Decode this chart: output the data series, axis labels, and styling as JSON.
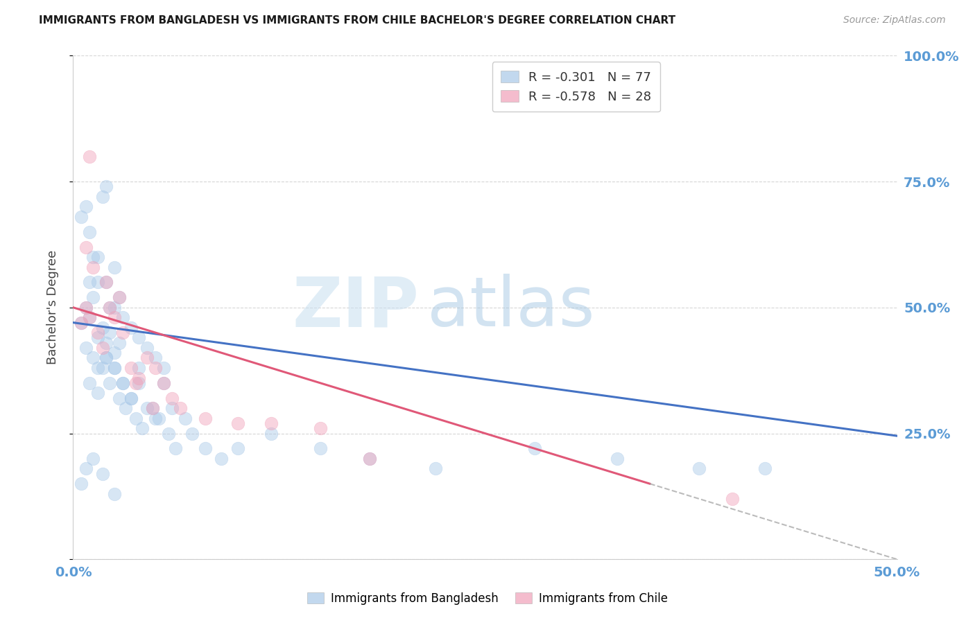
{
  "title": "IMMIGRANTS FROM BANGLADESH VS IMMIGRANTS FROM CHILE BACHELOR'S DEGREE CORRELATION CHART",
  "source": "Source: ZipAtlas.com",
  "ylabel": "Bachelor's Degree",
  "xmin": 0.0,
  "xmax": 0.5,
  "ymin": 0.0,
  "ymax": 1.0,
  "yticks": [
    0.0,
    0.25,
    0.5,
    0.75,
    1.0
  ],
  "ytick_labels": [
    "",
    "25.0%",
    "50.0%",
    "75.0%",
    "100.0%"
  ],
  "xticks": [
    0.0,
    0.1,
    0.2,
    0.3,
    0.4,
    0.5
  ],
  "xtick_labels": [
    "0.0%",
    "",
    "",
    "",
    "",
    "50.0%"
  ],
  "bangladesh_color": "#a8c8e8",
  "chile_color": "#f0a0b8",
  "bangladesh_R": -0.301,
  "bangladesh_N": 77,
  "chile_R": -0.578,
  "chile_N": 28,
  "watermark_zip": "ZIP",
  "watermark_atlas": "atlas",
  "right_axis_color": "#5b9bd5",
  "bangladesh_scatter_x": [
    0.005,
    0.008,
    0.01,
    0.012,
    0.015,
    0.018,
    0.02,
    0.022,
    0.025,
    0.028,
    0.005,
    0.008,
    0.01,
    0.012,
    0.015,
    0.018,
    0.02,
    0.022,
    0.025,
    0.028,
    0.01,
    0.015,
    0.02,
    0.025,
    0.03,
    0.035,
    0.04,
    0.045,
    0.05,
    0.055,
    0.015,
    0.02,
    0.025,
    0.03,
    0.035,
    0.04,
    0.045,
    0.05,
    0.055,
    0.06,
    0.01,
    0.015,
    0.02,
    0.025,
    0.03,
    0.035,
    0.04,
    0.008,
    0.012,
    0.018,
    0.022,
    0.028,
    0.032,
    0.038,
    0.042,
    0.048,
    0.052,
    0.058,
    0.062,
    0.068,
    0.072,
    0.08,
    0.09,
    0.1,
    0.12,
    0.15,
    0.18,
    0.22,
    0.28,
    0.33,
    0.38,
    0.42,
    0.005,
    0.008,
    0.012,
    0.018,
    0.025
  ],
  "bangladesh_scatter_y": [
    0.47,
    0.5,
    0.48,
    0.52,
    0.44,
    0.46,
    0.43,
    0.45,
    0.41,
    0.43,
    0.68,
    0.7,
    0.65,
    0.6,
    0.55,
    0.72,
    0.74,
    0.5,
    0.58,
    0.52,
    0.55,
    0.6,
    0.55,
    0.5,
    0.48,
    0.46,
    0.44,
    0.42,
    0.4,
    0.38,
    0.38,
    0.4,
    0.38,
    0.35,
    0.32,
    0.35,
    0.3,
    0.28,
    0.35,
    0.3,
    0.35,
    0.33,
    0.4,
    0.38,
    0.35,
    0.32,
    0.38,
    0.42,
    0.4,
    0.38,
    0.35,
    0.32,
    0.3,
    0.28,
    0.26,
    0.3,
    0.28,
    0.25,
    0.22,
    0.28,
    0.25,
    0.22,
    0.2,
    0.22,
    0.25,
    0.22,
    0.2,
    0.18,
    0.22,
    0.2,
    0.18,
    0.18,
    0.15,
    0.18,
    0.2,
    0.17,
    0.13
  ],
  "chile_scatter_x": [
    0.005,
    0.008,
    0.01,
    0.015,
    0.018,
    0.022,
    0.025,
    0.03,
    0.035,
    0.04,
    0.045,
    0.05,
    0.055,
    0.06,
    0.065,
    0.08,
    0.1,
    0.12,
    0.15,
    0.18,
    0.008,
    0.012,
    0.02,
    0.028,
    0.038,
    0.048,
    0.4,
    0.01
  ],
  "chile_scatter_y": [
    0.47,
    0.5,
    0.48,
    0.45,
    0.42,
    0.5,
    0.48,
    0.45,
    0.38,
    0.36,
    0.4,
    0.38,
    0.35,
    0.32,
    0.3,
    0.28,
    0.27,
    0.27,
    0.26,
    0.2,
    0.62,
    0.58,
    0.55,
    0.52,
    0.35,
    0.3,
    0.12,
    0.8
  ],
  "trendline_bangladesh_x0": 0.0,
  "trendline_bangladesh_x1": 0.5,
  "trendline_bangladesh_y0": 0.47,
  "trendline_bangladesh_y1": 0.245,
  "trendline_chile_x0": 0.0,
  "trendline_chile_x1": 0.5,
  "trendline_chile_y0": 0.5,
  "trendline_chile_y1": 0.0,
  "trendline_solid_end": 0.35,
  "trendline_dash_start": 0.35
}
